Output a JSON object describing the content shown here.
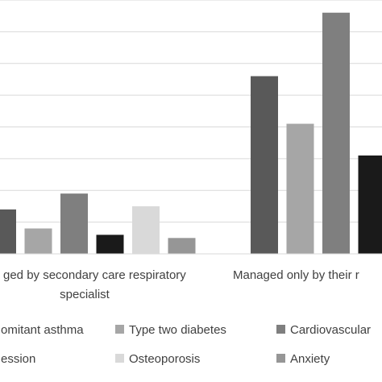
{
  "chart_data": {
    "type": "bar",
    "categories": [
      "Managed by secondary care respiratory specialist",
      "Managed only by their primary care physician"
    ],
    "category_label_visible": [
      [
        "ged by secondary care respiratory",
        "specialist"
      ],
      [
        "Managed only by their r"
      ]
    ],
    "series": [
      {
        "name": "Concomitant asthma",
        "legend_visible": "omitant asthma",
        "color": "#595959",
        "values": [
          7,
          28
        ]
      },
      {
        "name": "Type two diabetes",
        "legend_visible": "Type two diabetes",
        "color": "#a6a6a6",
        "values": [
          4,
          20.5
        ]
      },
      {
        "name": "Cardiovascular",
        "legend_visible": "Cardiovascular",
        "color": "#7f7f7f",
        "values": [
          9.5,
          38
        ]
      },
      {
        "name": "Depression",
        "legend_visible": "ession",
        "color": "#1a1a1a",
        "values": [
          3,
          15.5
        ]
      },
      {
        "name": "Osteoporosis",
        "legend_visible": "Osteoporosis",
        "color": "#d9d9d9",
        "values": [
          7.5,
          null
        ]
      },
      {
        "name": "Anxiety",
        "legend_visible": "Anxiety",
        "color": "#969696",
        "values": [
          2.5,
          null
        ]
      }
    ],
    "ylim": [
      0,
      40
    ],
    "grid": true,
    "legend_position": "bottom"
  }
}
